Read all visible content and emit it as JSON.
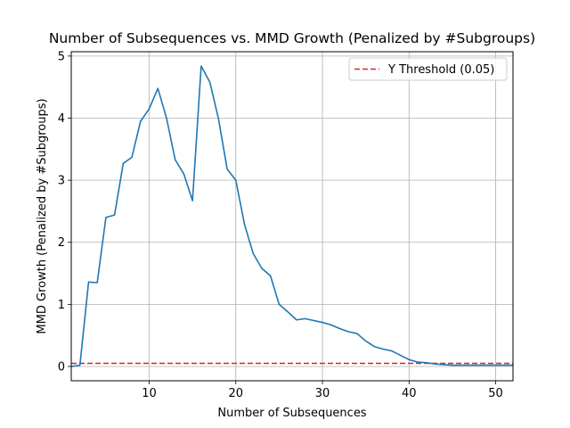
{
  "chart_data": {
    "type": "line",
    "title": "Number of Subsequences vs. MMD Growth (Penalized by #Subgroups)",
    "xlabel": "Number of Subsequences",
    "ylabel": "MMD Growth (Penalized by #Subgroups)",
    "xlim": [
      1,
      52
    ],
    "ylim": [
      -0.23,
      5.07
    ],
    "xticks": [
      10,
      20,
      30,
      40,
      50
    ],
    "yticks": [
      0,
      1,
      2,
      3,
      4,
      5
    ],
    "grid": true,
    "legend_position": "upper right",
    "series": [
      {
        "color": "#1f77b4",
        "x": [
          1,
          2,
          3,
          4,
          5,
          6,
          7,
          8,
          9,
          10,
          11,
          12,
          13,
          14,
          15,
          16,
          17,
          18,
          19,
          20,
          21,
          22,
          23,
          24,
          25,
          26,
          27,
          28,
          29,
          30,
          31,
          32,
          33,
          34,
          35,
          36,
          37,
          38,
          39,
          40,
          41,
          42,
          43,
          44,
          45,
          46,
          47,
          48,
          49,
          50,
          51,
          52
        ],
        "y": [
          0.0,
          0.02,
          1.36,
          1.35,
          2.4,
          2.44,
          3.27,
          3.37,
          3.95,
          4.15,
          4.48,
          4.0,
          3.33,
          3.1,
          2.67,
          4.84,
          4.58,
          3.99,
          3.18,
          3.0,
          2.29,
          1.82,
          1.58,
          1.46,
          1.0,
          0.88,
          0.75,
          0.77,
          0.74,
          0.71,
          0.67,
          0.61,
          0.56,
          0.53,
          0.41,
          0.32,
          0.28,
          0.25,
          0.18,
          0.11,
          0.07,
          0.06,
          0.04,
          0.03,
          0.02,
          0.02,
          0.02,
          0.02,
          0.02,
          0.02,
          0.02,
          0.02
        ]
      }
    ],
    "threshold": {
      "name": "Y Threshold (0.05)",
      "value": 0.05,
      "color": "#d62728",
      "style": "dashed"
    }
  }
}
